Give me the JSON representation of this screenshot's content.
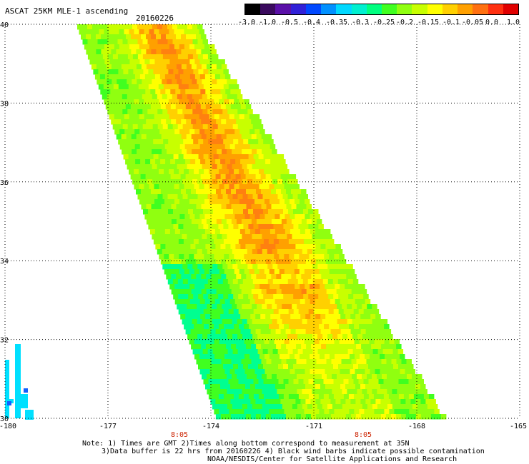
{
  "title": "ASCAT 25KM MLE-1 ascending",
  "date": "20160226",
  "colorbar": {
    "tick_labels": [
      "-3.0",
      "-1.0",
      "-0.5",
      "-0.4",
      "-0.35",
      "-0.3",
      "-0.25",
      "-0.2",
      "-0.15",
      "-0.1",
      "-0.05",
      "0.0",
      "1.0"
    ],
    "colors": [
      "#000000",
      "#3a0a5e",
      "#5a10a8",
      "#3020d8",
      "#0048ff",
      "#0090ff",
      "#00d8ff",
      "#00f0d0",
      "#00ff80",
      "#40ff20",
      "#90ff10",
      "#c8ff00",
      "#ffff00",
      "#ffd000",
      "#ffa000",
      "#ff7010",
      "#ff3010",
      "#e00000"
    ]
  },
  "map": {
    "lat_labels": [
      "40",
      "38",
      "36",
      "34",
      "32",
      "30"
    ],
    "lon_labels": [
      "-180",
      "-177",
      "-174",
      "-171",
      "-168",
      "-165"
    ],
    "time_labels": [
      "8:05",
      "8:05"
    ],
    "time_label_color": "#cc2200",
    "grid_style": "dotted",
    "lat_range": [
      30,
      40
    ],
    "lon_range": [
      -180,
      -165
    ]
  },
  "notes": [
    "Note: 1) Times are GMT 2)Times along bottom correspond to measurement at 35N",
    "3)Data buffer is 22 hrs from 20160226 4) Black wind barbs indicate possible contamination",
    "NOAA/NESDIS/Center for Satellite Applications and Research"
  ]
}
